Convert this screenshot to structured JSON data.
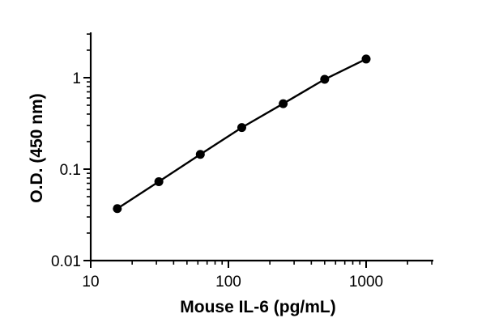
{
  "chart_data": {
    "type": "line",
    "title": "",
    "xlabel": "Mouse IL-6 (pg/mL)",
    "ylabel": "O.D. (450 nm)",
    "x_scale": "log",
    "y_scale": "log",
    "xlim": [
      10,
      3000
    ],
    "ylim": [
      0.01,
      3
    ],
    "x_ticks": [
      10,
      100,
      1000
    ],
    "x_tick_labels": [
      "10",
      "100",
      "1000"
    ],
    "y_ticks": [
      0.01,
      0.1,
      1
    ],
    "y_tick_labels": [
      "0.01",
      "0.1",
      "1"
    ],
    "grid": false,
    "legend": "none",
    "series": [
      {
        "color": "#000000",
        "marker": "circle",
        "points": [
          {
            "x": 15.6,
            "y": 0.037
          },
          {
            "x": 31.25,
            "y": 0.073
          },
          {
            "x": 62.5,
            "y": 0.145
          },
          {
            "x": 125,
            "y": 0.285
          },
          {
            "x": 250,
            "y": 0.52
          },
          {
            "x": 500,
            "y": 0.96
          },
          {
            "x": 1000,
            "y": 1.6
          }
        ]
      }
    ]
  }
}
